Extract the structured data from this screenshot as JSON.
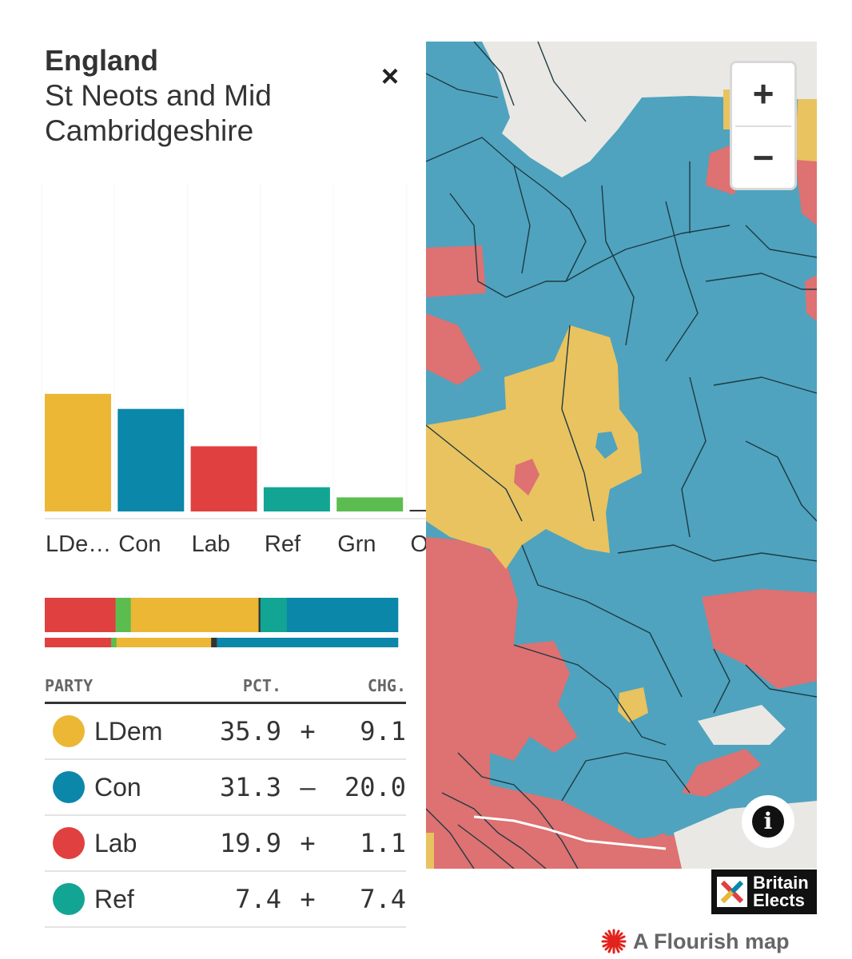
{
  "panel": {
    "region": "England",
    "constituency": "St Neots and Mid Cambridgeshire",
    "close_label": "×"
  },
  "chart_data": {
    "type": "bar",
    "categories": [
      "LDe…",
      "Con",
      "Lab",
      "Ref",
      "Grn",
      "O"
    ],
    "values": [
      35.9,
      31.3,
      19.9,
      7.4,
      4.3,
      0.5
    ],
    "colors": [
      "#ebb734",
      "#0a87a9",
      "#e0403f",
      "#13a593",
      "#5bbd4f",
      "#333333"
    ],
    "ylim": [
      0,
      100
    ],
    "title": "",
    "xlabel": "",
    "ylabel": ""
  },
  "share_strip": {
    "current": [
      {
        "party": "Lab",
        "value": 19.9,
        "color": "#e0403f"
      },
      {
        "party": "Grn",
        "value": 4.3,
        "color": "#5bbd4f"
      },
      {
        "party": "LDem",
        "value": 35.9,
        "color": "#ebb734"
      },
      {
        "party": "O",
        "value": 0.5,
        "color": "#333333"
      },
      {
        "party": "Ref",
        "value": 7.4,
        "color": "#13a593"
      },
      {
        "party": "Con",
        "value": 31.3,
        "color": "#0a87a9"
      }
    ],
    "previous": [
      {
        "party": "Lab",
        "value": 18.8,
        "color": "#e0403f"
      },
      {
        "party": "Grn",
        "value": 1.5,
        "color": "#5bbd4f"
      },
      {
        "party": "LDem",
        "value": 26.8,
        "color": "#ebb734"
      },
      {
        "party": "O",
        "value": 1.6,
        "color": "#333333"
      },
      {
        "party": "Con",
        "value": 51.3,
        "color": "#0a87a9"
      }
    ]
  },
  "table": {
    "headers": {
      "party": "PARTY",
      "pct": "PCT.",
      "chg": "CHG."
    },
    "rows": [
      {
        "party": "LDem",
        "pct": "35.9",
        "sign": "+",
        "chg": "9.1",
        "color": "#ebb734"
      },
      {
        "party": "Con",
        "pct": "31.3",
        "sign": "–",
        "chg": "20.0",
        "color": "#0a87a9"
      },
      {
        "party": "Lab",
        "pct": "19.9",
        "sign": "+",
        "chg": "1.1",
        "color": "#e0403f"
      },
      {
        "party": "Ref",
        "pct": "7.4",
        "sign": "+",
        "chg": "7.4",
        "color": "#13a593"
      }
    ]
  },
  "map": {
    "colors": {
      "con": "#4fa3be",
      "lab": "#de7171",
      "ldem": "#e8c35f",
      "sea": "#e9e8e4",
      "border": "#1f3a44"
    },
    "zoom_in_label": "+",
    "zoom_out_label": "−",
    "info_label": "i"
  },
  "branding": {
    "logo_line1": "Britain",
    "logo_line2": "Elects",
    "flourish_label": "A Flourish map"
  }
}
